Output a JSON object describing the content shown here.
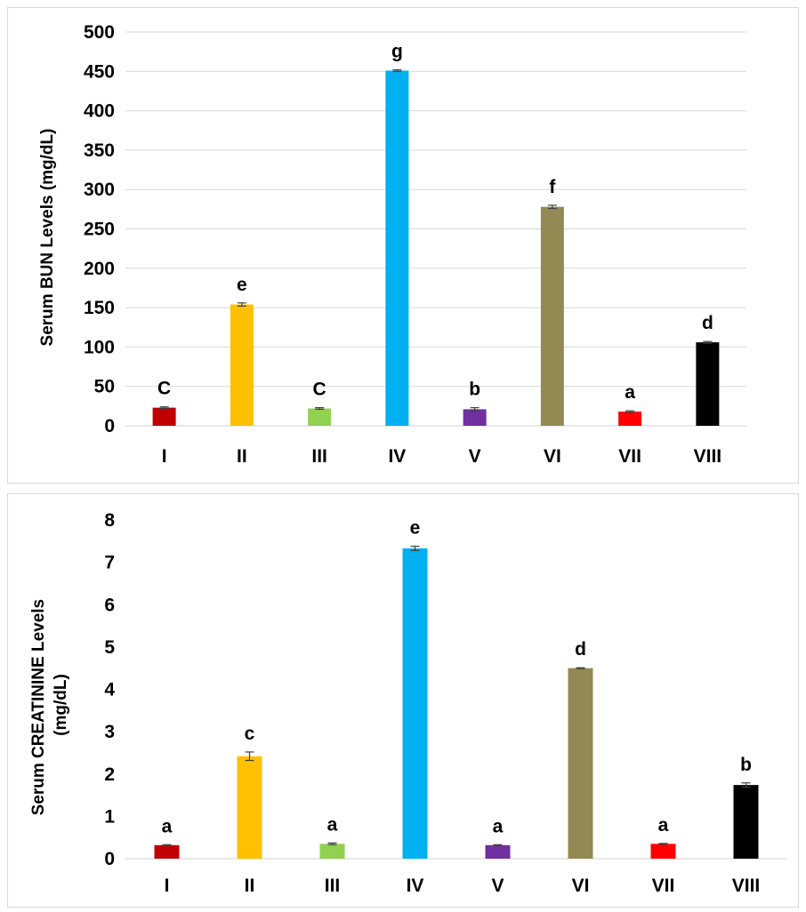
{
  "chart_data": [
    {
      "type": "bar",
      "ylabel": "Serum BUN Levels (mg/dL)",
      "ylim": [
        0,
        500
      ],
      "yticks": [
        0,
        50,
        100,
        150,
        200,
        250,
        300,
        350,
        400,
        450,
        500
      ],
      "grid": true,
      "categories": [
        "I",
        "II",
        "III",
        "IV",
        "V",
        "VI",
        "VII",
        "VIII"
      ],
      "values": [
        23,
        154,
        22,
        451,
        21,
        278,
        18,
        106
      ],
      "errors": [
        1,
        2,
        1,
        1,
        2,
        2,
        1,
        1
      ],
      "letters": [
        "C",
        "e",
        "C",
        "g",
        "b",
        "f",
        "a",
        "d"
      ],
      "colors": [
        "#c00000",
        "#ffc000",
        "#92d050",
        "#00b0f0",
        "#7030a0",
        "#938953",
        "#ff0000",
        "#000000"
      ]
    },
    {
      "type": "bar",
      "ylabel": "Serum CREATININE Levels (mg/dL)",
      "ylim": [
        0,
        8
      ],
      "yticks": [
        0,
        1,
        2,
        3,
        4,
        5,
        6,
        7,
        8
      ],
      "grid": false,
      "categories": [
        "I",
        "II",
        "III",
        "IV",
        "V",
        "VI",
        "VII",
        "VIII"
      ],
      "values": [
        0.32,
        2.42,
        0.35,
        7.33,
        0.32,
        4.5,
        0.35,
        1.74
      ],
      "errors": [
        0.01,
        0.1,
        0.02,
        0.05,
        0.01,
        0.01,
        0.01,
        0.05
      ],
      "letters": [
        "a",
        "c",
        "a",
        "e",
        "a",
        "d",
        "a",
        "b"
      ],
      "colors": [
        "#c00000",
        "#ffc000",
        "#92d050",
        "#00b0f0",
        "#7030a0",
        "#938953",
        "#ff0000",
        "#000000"
      ]
    }
  ]
}
